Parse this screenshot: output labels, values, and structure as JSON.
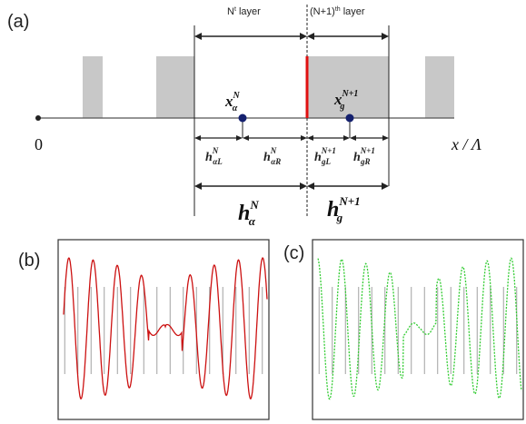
{
  "panel_labels": {
    "a": "(a)",
    "b": "(b)",
    "c": "(c)"
  },
  "layers": {
    "n_label_base": "N",
    "n_label_sup": "t",
    "n_label_tail": " layer",
    "n1_label_base": "(N+1)",
    "n1_label_sup": "th",
    "n1_label_tail": " layer"
  },
  "axis": {
    "origin": "0",
    "xlabel": "x / Λ"
  },
  "points": {
    "xa_base": "x",
    "xa_sub": "α",
    "xa_sup": "N",
    "xg_base": "x",
    "xg_sub": "g",
    "xg_sup": "N+1"
  },
  "thickness": {
    "h_aL": {
      "base": "h",
      "sub": "αL",
      "sup": "N"
    },
    "h_aR": {
      "base": "h",
      "sub": "αR",
      "sup": "N"
    },
    "h_gL": {
      "base": "h",
      "sub": "gL",
      "sup": "N+1"
    },
    "h_gR": {
      "base": "h",
      "sub": "gR",
      "sup": "N+1"
    },
    "h_a": {
      "base": "h",
      "sub": "α",
      "sup": "N"
    },
    "h_g": {
      "base": "h",
      "sub": "g",
      "sup": "N+1"
    }
  },
  "colors": {
    "gray_layer": "#c8c8c8",
    "boundary": "#e01010",
    "point": "#14206e",
    "wave_b": "#cc1111",
    "wave_c": "#33cc33",
    "gridline": "#a0a0a0"
  }
}
